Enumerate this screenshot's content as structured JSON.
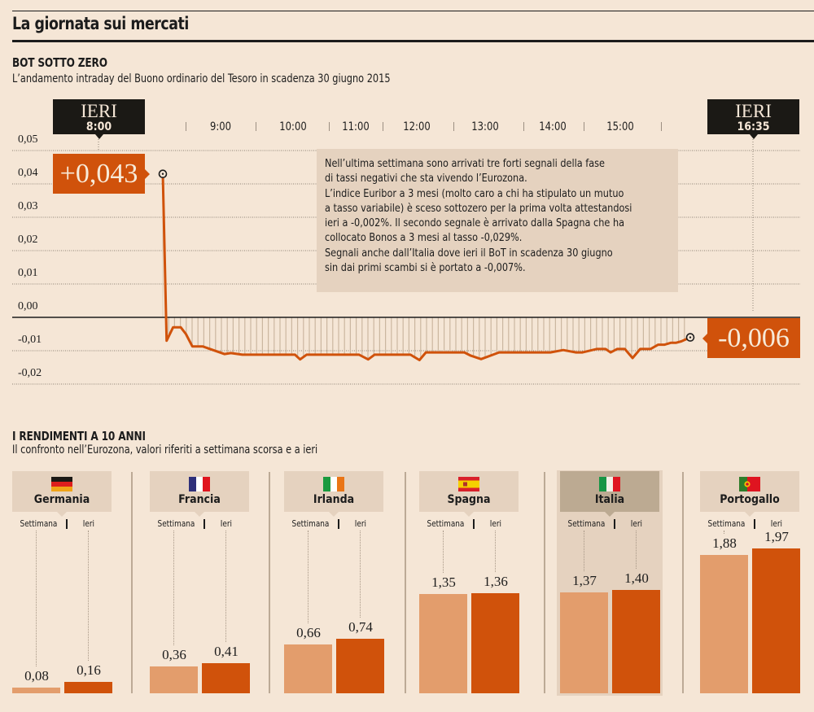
{
  "header": {
    "title": "La giornata sui mercati"
  },
  "section1": {
    "title": "BOT SOTTO ZERO",
    "subtitle": "L’andamento intraday del Buono ordinario del Tesoro in scadenza 30 giugno 2015",
    "start_tag": {
      "label": "IERI",
      "time": "8:00"
    },
    "end_tag": {
      "label": "IERI",
      "time": "16:35"
    },
    "start_value": "+0,043",
    "end_value": "-0,006",
    "note_lines": [
      "Nell’ultima settimana sono arrivati tre forti segnali della fase",
      "di tassi negativi che sta vivendo l’Eurozona.",
      "L’indice Euribor a 3 mesi (molto caro a chi ha stipulato un mutuo",
      "a tasso variabile) è sceso sottozero per la prima volta attestandosi",
      "ieri a -0,002%. Il secondo segnale è arrivato dalla Spagna che ha",
      "collocato Bonos a 3 mesi al tasso -0,029%.",
      "Segnali anche dall’Italia dove ieri il BoT in scadenza 30 giugno",
      "sin dai primi scambi si è portato a -0,007%."
    ]
  },
  "section2": {
    "title": "I RENDIMENTI A 10 ANNI",
    "subtitle": "Il confronto nell’Eurozona, valori riferiti a settimana scorsa e a ieri",
    "legend_week": "Settimana",
    "legend_yesterday": "Ieri"
  },
  "colors": {
    "accent": "#d0520b",
    "accent_light": "#e39d6c",
    "dark": "#1b1915",
    "background": "#f5e6d6",
    "panel": "#e5d2bf"
  },
  "chart_data": [
    {
      "type": "line",
      "title": "BOT SOTTO ZERO",
      "xlabel": "",
      "ylabel": "",
      "x_ticks": [
        "9:00",
        "10:00",
        "11:00",
        "12:00",
        "13:00",
        "14:00",
        "15:00"
      ],
      "x_range": [
        "8:00",
        "16:35"
      ],
      "y_ticks": [
        "0,05",
        "0,04",
        "0,03",
        "0,02",
        "0,01",
        "0,00",
        "-0,01",
        "-0,02"
      ],
      "ylim": [
        -0.02,
        0.05
      ],
      "grid": true,
      "start_value": 0.043,
      "end_value": -0.006,
      "series": [
        {
          "name": "BOT 30/06/2015",
          "x_minutes_from_8": [
            0,
            3,
            8,
            14,
            18,
            23,
            31,
            48,
            53,
            62,
            103,
            107,
            112,
            117,
            153,
            160,
            165,
            170,
            193,
            200,
            205,
            210,
            220,
            235,
            240,
            248,
            262,
            268,
            278,
            302,
            312,
            322,
            327,
            338,
            345,
            349,
            354,
            360,
            366,
            372,
            380,
            386,
            391,
            396,
            400,
            404,
            411
          ],
          "values": [
            0.043,
            -0.007,
            -0.003,
            -0.003,
            -0.005,
            -0.0087,
            -0.0087,
            -0.011,
            -0.0107,
            -0.0112,
            -0.0112,
            -0.0126,
            -0.0112,
            -0.0112,
            -0.0112,
            -0.0126,
            -0.0112,
            -0.0112,
            -0.0112,
            -0.0128,
            -0.0105,
            -0.0105,
            -0.0105,
            -0.0105,
            -0.0115,
            -0.0125,
            -0.0105,
            -0.0105,
            -0.0105,
            -0.0105,
            -0.0098,
            -0.0105,
            -0.0105,
            -0.0095,
            -0.0095,
            -0.0105,
            -0.0095,
            -0.0095,
            -0.0122,
            -0.0095,
            -0.0095,
            -0.0082,
            -0.0082,
            -0.0076,
            -0.0076,
            -0.0072,
            -0.006
          ]
        }
      ]
    },
    {
      "type": "bar",
      "title": "I RENDIMENTI A 10 ANNI",
      "categories": [
        "Germania",
        "Francia",
        "Irlanda",
        "Spagna",
        "Italia",
        "Portogallo"
      ],
      "highlight": "Italia",
      "series": [
        {
          "name": "Settimana",
          "values": [
            0.08,
            0.36,
            0.66,
            1.35,
            1.37,
            1.88
          ],
          "labels": [
            "0,08",
            "0,36",
            "0,66",
            "1,35",
            "1,37",
            "1,88"
          ]
        },
        {
          "name": "Ieri",
          "values": [
            0.16,
            0.41,
            0.74,
            1.36,
            1.4,
            1.97
          ],
          "labels": [
            "0,16",
            "0,41",
            "0,74",
            "1,36",
            "1,40",
            "1,97"
          ]
        }
      ],
      "flags": [
        "germany-flag-icon",
        "france-flag-icon",
        "ireland-flag-icon",
        "spain-flag-icon",
        "italy-flag-icon",
        "portugal-flag-icon"
      ],
      "ylim": [
        0,
        2
      ]
    }
  ]
}
